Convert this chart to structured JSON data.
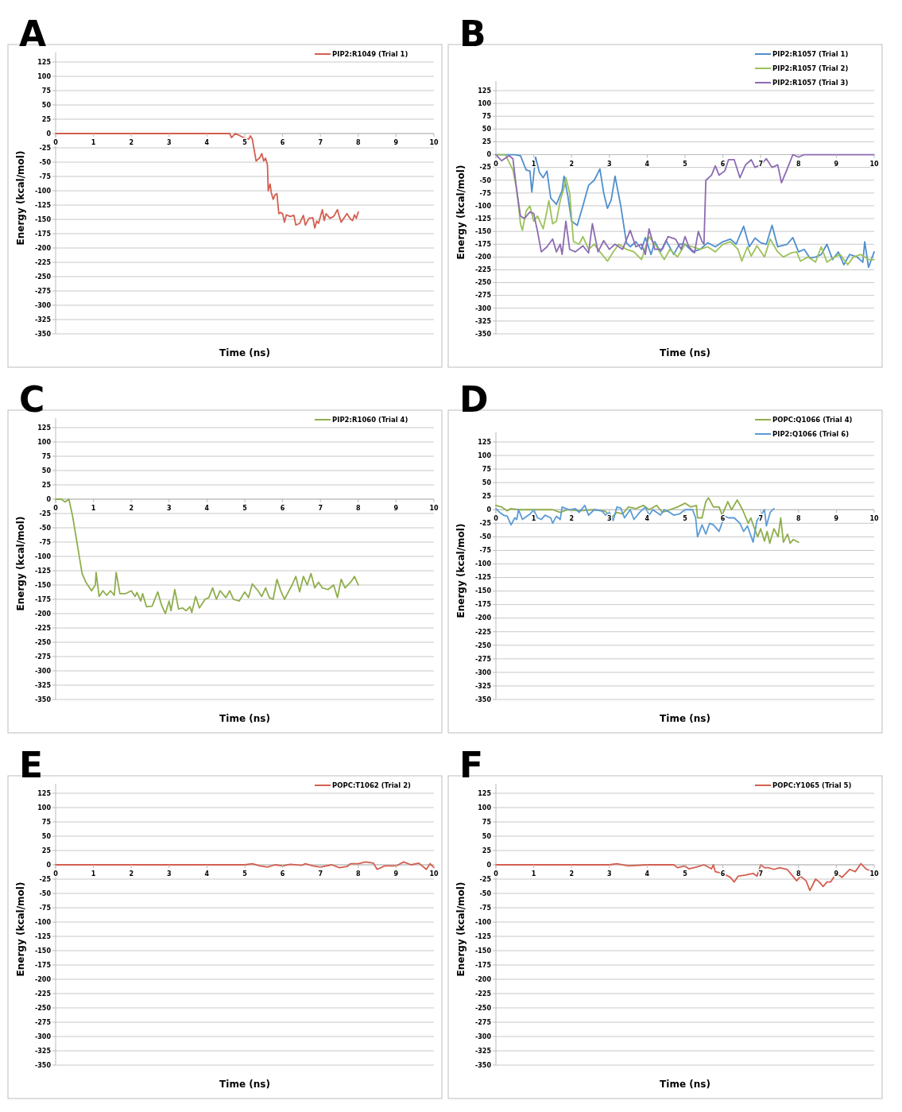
{
  "chart_data": [
    {
      "type": "line",
      "title": "A",
      "xlabel": "Time (ns)",
      "ylabel": "Energy (kcal/mol)",
      "xlim": [
        0,
        10
      ],
      "ylim": [
        -350,
        125
      ],
      "xticks": [
        0,
        1,
        2,
        3,
        4,
        5,
        6,
        7,
        8,
        9,
        10
      ],
      "yticks": [
        -350,
        -325,
        -300,
        -275,
        -250,
        -225,
        -200,
        -175,
        -150,
        -125,
        -100,
        -75,
        -50,
        -25,
        0,
        25,
        50,
        75,
        100,
        125
      ],
      "grid": "y",
      "legend": "top right",
      "series": [
        {
          "name": "PIP2:R1049 (Trial 1)",
          "color": "#d35f50",
          "x": [
            0,
            1,
            2,
            3,
            4,
            4.6,
            4.65,
            4.75,
            5.0,
            5.1,
            5.15,
            5.2,
            5.3,
            5.4,
            5.45,
            5.5,
            5.55,
            5.6,
            5.62,
            5.67,
            5.7,
            5.75,
            5.8,
            5.85,
            5.9,
            5.95,
            6.0,
            6.05,
            6.1,
            6.2,
            6.3,
            6.35,
            6.45,
            6.55,
            6.6,
            6.7,
            6.8,
            6.85,
            6.9,
            6.95,
            7.05,
            7.1,
            7.15,
            7.25,
            7.35,
            7.45,
            7.5,
            7.55,
            7.6,
            7.7,
            7.8,
            7.85,
            7.9,
            7.95,
            8.0
          ],
          "values": [
            0,
            0,
            0,
            0,
            0,
            0,
            -7,
            0,
            -8,
            -10,
            -4,
            -10,
            -48,
            -42,
            -35,
            -48,
            -43,
            -55,
            -100,
            -88,
            -103,
            -115,
            -107,
            -105,
            -140,
            -138,
            -140,
            -155,
            -142,
            -145,
            -143,
            -160,
            -157,
            -143,
            -160,
            -148,
            -147,
            -165,
            -153,
            -157,
            -133,
            -152,
            -140,
            -148,
            -145,
            -133,
            -145,
            -155,
            -150,
            -140,
            -150,
            -152,
            -142,
            -148,
            -137
          ]
        }
      ]
    },
    {
      "type": "line",
      "title": "B",
      "xlabel": "Time (ns)",
      "ylabel": "Energy (kcal/mol)",
      "xlim": [
        0,
        10
      ],
      "ylim": [
        -350,
        125
      ],
      "xticks": [
        0,
        1,
        2,
        3,
        4,
        5,
        6,
        7,
        8,
        9,
        10
      ],
      "yticks": [
        -350,
        -325,
        -300,
        -275,
        -250,
        -225,
        -200,
        -175,
        -150,
        -125,
        -100,
        -75,
        -50,
        -25,
        0,
        25,
        50,
        75,
        100,
        125
      ],
      "grid": "y",
      "legend": "top right",
      "series": [
        {
          "name": "PIP2:R1057 (Trial 1)",
          "color": "#4f8fcf",
          "x": [
            0,
            0.3,
            0.5,
            0.65,
            0.8,
            0.9,
            0.95,
            1.05,
            1.15,
            1.25,
            1.35,
            1.45,
            1.6,
            1.75,
            1.8,
            1.9,
            2.0,
            2.15,
            2.3,
            2.45,
            2.6,
            2.75,
            2.85,
            2.95,
            3.05,
            3.15,
            3.3,
            3.45,
            3.55,
            3.7,
            3.85,
            3.95,
            4.1,
            4.2,
            4.35,
            4.5,
            4.7,
            4.85,
            5.0,
            5.2,
            5.4,
            5.6,
            5.8,
            6.0,
            6.2,
            6.35,
            6.55,
            6.7,
            6.85,
            7.0,
            7.15,
            7.3,
            7.45,
            7.7,
            7.85,
            8.0,
            8.15,
            8.3,
            8.45,
            8.6,
            8.75,
            8.9,
            9.05,
            9.2,
            9.35,
            9.55,
            9.7,
            9.75,
            9.85,
            10
          ],
          "values": [
            0,
            0,
            0,
            -2,
            -30,
            -32,
            -73,
            -5,
            -35,
            -45,
            -32,
            -85,
            -97,
            -70,
            -42,
            -80,
            -130,
            -138,
            -100,
            -60,
            -50,
            -28,
            -75,
            -105,
            -88,
            -42,
            -100,
            -172,
            -180,
            -170,
            -185,
            -162,
            -195,
            -170,
            -190,
            -168,
            -195,
            -175,
            -175,
            -190,
            -185,
            -172,
            -180,
            -170,
            -165,
            -175,
            -140,
            -180,
            -163,
            -172,
            -175,
            -138,
            -180,
            -175,
            -162,
            -190,
            -185,
            -202,
            -200,
            -195,
            -175,
            -205,
            -190,
            -215,
            -195,
            -200,
            -210,
            -170,
            -220,
            -190
          ]
        },
        {
          "name": "PIP2:R1057 (Trial 2)",
          "color": "#9bc25a",
          "x": [
            0,
            0.25,
            0.45,
            0.55,
            0.65,
            0.7,
            0.8,
            0.9,
            1.0,
            1.1,
            1.25,
            1.35,
            1.4,
            1.5,
            1.6,
            1.7,
            1.8,
            1.85,
            1.95,
            2.05,
            2.2,
            2.3,
            2.45,
            2.6,
            2.75,
            2.95,
            3.1,
            3.25,
            3.45,
            3.65,
            3.85,
            4.05,
            4.25,
            4.45,
            4.6,
            4.8,
            5.0,
            5.2,
            5.4,
            5.6,
            5.8,
            6.0,
            6.2,
            6.4,
            6.5,
            6.65,
            6.75,
            6.9,
            7.1,
            7.25,
            7.45,
            7.6,
            7.8,
            7.95,
            8.05,
            8.25,
            8.45,
            8.6,
            8.75,
            8.95,
            9.1,
            9.3,
            9.45,
            9.65,
            9.85,
            10
          ],
          "values": [
            0,
            0,
            -30,
            -68,
            -135,
            -148,
            -110,
            -100,
            -130,
            -120,
            -145,
            -110,
            -90,
            -135,
            -130,
            -90,
            -65,
            -45,
            -75,
            -170,
            -175,
            -160,
            -185,
            -175,
            -190,
            -208,
            -190,
            -175,
            -185,
            -190,
            -205,
            -160,
            -180,
            -205,
            -185,
            -200,
            -175,
            -180,
            -185,
            -180,
            -190,
            -175,
            -170,
            -185,
            -208,
            -180,
            -198,
            -178,
            -200,
            -165,
            -190,
            -200,
            -192,
            -190,
            -208,
            -200,
            -210,
            -180,
            -210,
            -200,
            -195,
            -215,
            -200,
            -195,
            -205,
            -205
          ]
        },
        {
          "name": "PIP2:R1057 (Trial 3)",
          "color": "#8c6bb1",
          "x": [
            0,
            0.15,
            0.35,
            0.45,
            0.55,
            0.65,
            0.75,
            0.9,
            1.0,
            1.1,
            1.2,
            1.35,
            1.5,
            1.6,
            1.7,
            1.75,
            1.85,
            1.95,
            2.1,
            2.3,
            2.45,
            2.55,
            2.7,
            2.85,
            3.0,
            3.15,
            3.35,
            3.55,
            3.7,
            3.85,
            3.95,
            4.05,
            4.2,
            4.4,
            4.55,
            4.75,
            4.9,
            5.0,
            5.1,
            5.25,
            5.35,
            5.45,
            5.5,
            5.55,
            5.7,
            5.8,
            5.9,
            6.05,
            6.15,
            6.3,
            6.45,
            6.6,
            6.75,
            6.85,
            7.0,
            7.15,
            7.3,
            7.45,
            7.55,
            7.7,
            7.85,
            8.0,
            8.15,
            8.5,
            10
          ],
          "values": [
            0,
            -12,
            -2,
            -8,
            -70,
            -120,
            -125,
            -112,
            -115,
            -150,
            -190,
            -180,
            -165,
            -190,
            -175,
            -195,
            -130,
            -185,
            -190,
            -178,
            -192,
            -135,
            -190,
            -168,
            -185,
            -175,
            -185,
            -148,
            -180,
            -175,
            -195,
            -145,
            -185,
            -185,
            -160,
            -165,
            -185,
            -160,
            -180,
            -192,
            -150,
            -170,
            -175,
            -50,
            -40,
            -22,
            -40,
            -32,
            -10,
            -10,
            -45,
            -20,
            -10,
            -25,
            -20,
            -8,
            -25,
            -20,
            -55,
            -28,
            0,
            -5,
            0,
            0,
            0
          ]
        }
      ]
    },
    {
      "type": "line",
      "title": "C",
      "xlabel": "Time (ns)",
      "ylabel": "Energy (kcal/mol)",
      "xlim": [
        0,
        10
      ],
      "ylim": [
        -350,
        125
      ],
      "xticks": [
        0,
        1,
        2,
        3,
        4,
        5,
        6,
        7,
        8,
        9,
        10
      ],
      "yticks": [
        -350,
        -325,
        -300,
        -275,
        -250,
        -225,
        -200,
        -175,
        -150,
        -125,
        -100,
        -75,
        -50,
        -25,
        0,
        25,
        50,
        75,
        100,
        125
      ],
      "grid": "y",
      "legend": "top right",
      "series": [
        {
          "name": "PIP2:R1060 (Trial 4)",
          "color": "#8fae4c",
          "x": [
            0,
            0.15,
            0.25,
            0.35,
            0.45,
            0.6,
            0.7,
            0.8,
            0.95,
            1.05,
            1.07,
            1.15,
            1.25,
            1.35,
            1.45,
            1.55,
            1.6,
            1.7,
            1.85,
            2.0,
            2.1,
            2.15,
            2.25,
            2.3,
            2.4,
            2.55,
            2.7,
            2.8,
            2.9,
            3.0,
            3.05,
            3.15,
            3.25,
            3.35,
            3.45,
            3.55,
            3.6,
            3.7,
            3.8,
            3.95,
            4.05,
            4.15,
            4.25,
            4.35,
            4.5,
            4.6,
            4.7,
            4.85,
            5.0,
            5.1,
            5.2,
            5.35,
            5.45,
            5.55,
            5.65,
            5.75,
            5.85,
            5.95,
            6.05,
            6.25,
            6.35,
            6.45,
            6.55,
            6.65,
            6.75,
            6.85,
            6.95,
            7.05,
            7.2,
            7.35,
            7.45,
            7.55,
            7.65,
            7.8,
            7.9,
            8.0
          ],
          "values": [
            0,
            0,
            -5,
            0,
            -30,
            -90,
            -130,
            -145,
            -160,
            -150,
            -128,
            -170,
            -160,
            -168,
            -160,
            -168,
            -128,
            -165,
            -165,
            -160,
            -170,
            -163,
            -178,
            -165,
            -188,
            -187,
            -162,
            -185,
            -200,
            -178,
            -195,
            -158,
            -192,
            -190,
            -195,
            -188,
            -198,
            -170,
            -190,
            -175,
            -172,
            -155,
            -175,
            -160,
            -172,
            -160,
            -175,
            -178,
            -162,
            -172,
            -148,
            -160,
            -170,
            -155,
            -172,
            -175,
            -140,
            -160,
            -175,
            -150,
            -135,
            -162,
            -135,
            -150,
            -130,
            -155,
            -145,
            -155,
            -158,
            -150,
            -172,
            -140,
            -155,
            -145,
            -135,
            -150
          ]
        }
      ]
    },
    {
      "type": "line",
      "title": "D",
      "xlabel": "Time (ns)",
      "ylabel": "Energy (kcal/mol)",
      "xlim": [
        0,
        10
      ],
      "ylim": [
        -350,
        125
      ],
      "xticks": [
        0,
        1,
        2,
        3,
        4,
        5,
        6,
        7,
        8,
        9,
        10
      ],
      "yticks": [
        -350,
        -325,
        -300,
        -275,
        -250,
        -225,
        -200,
        -175,
        -150,
        -125,
        -100,
        -75,
        -50,
        -25,
        0,
        25,
        50,
        75,
        100,
        125
      ],
      "grid": "y",
      "legend": "top right",
      "series": [
        {
          "name": "POPC:Q1066 (Trial 4)",
          "color": "#8fae4c",
          "x": [
            0,
            0.15,
            0.3,
            0.4,
            0.6,
            1.0,
            1.5,
            1.7,
            1.9,
            2.2,
            2.6,
            2.9,
            3.05,
            3.2,
            3.35,
            3.5,
            3.7,
            3.9,
            4.05,
            4.25,
            4.4,
            4.6,
            4.8,
            5.0,
            5.15,
            5.3,
            5.33,
            5.45,
            5.55,
            5.62,
            5.75,
            5.9,
            5.98,
            6.13,
            6.23,
            6.38,
            6.52,
            6.67,
            6.74,
            6.81,
            6.92,
            7.0,
            7.1,
            7.17,
            7.24,
            7.35,
            7.46,
            7.53,
            7.6,
            7.71,
            7.78,
            7.86,
            8.0
          ],
          "values": [
            8,
            5,
            -2,
            2,
            0,
            0,
            0,
            -5,
            0,
            -2,
            0,
            -3,
            -15,
            -5,
            -8,
            5,
            2,
            8,
            0,
            8,
            -5,
            0,
            5,
            12,
            5,
            8,
            -15,
            -15,
            15,
            22,
            5,
            5,
            -10,
            15,
            0,
            18,
            0,
            -25,
            -15,
            -30,
            -50,
            -35,
            -58,
            -40,
            -62,
            -35,
            -50,
            -15,
            -60,
            -45,
            -62,
            -55,
            -60
          ]
        },
        {
          "name": "PIP2:Q1066 (Trial 6)",
          "color": "#5b9bd5",
          "x": [
            0,
            0.1,
            0.2,
            0.3,
            0.4,
            0.5,
            0.55,
            0.6,
            0.7,
            0.9,
            1.0,
            1.1,
            1.2,
            1.3,
            1.45,
            1.5,
            1.6,
            1.7,
            1.75,
            1.85,
            1.95,
            2.1,
            2.2,
            2.35,
            2.45,
            2.6,
            2.8,
            2.9,
            3.0,
            3.1,
            3.2,
            3.3,
            3.4,
            3.55,
            3.65,
            3.8,
            3.95,
            4.05,
            4.15,
            4.35,
            4.45,
            4.6,
            4.7,
            4.85,
            5.0,
            5.2,
            5.28,
            5.33,
            5.45,
            5.55,
            5.65,
            5.75,
            5.9,
            6.0,
            6.05,
            6.15,
            6.3,
            6.45,
            6.55,
            6.65,
            6.8,
            6.9,
            7.05,
            7.1,
            7.15,
            7.25,
            7.35
          ],
          "values": [
            2,
            -5,
            -10,
            -12,
            -28,
            -15,
            -18,
            0,
            -18,
            -8,
            0,
            -15,
            -18,
            -10,
            -15,
            -25,
            -12,
            -18,
            5,
            2,
            0,
            2,
            -5,
            8,
            -10,
            0,
            -2,
            -10,
            -5,
            -20,
            5,
            3,
            -15,
            0,
            -18,
            -5,
            5,
            -10,
            0,
            -10,
            0,
            -5,
            -10,
            -8,
            0,
            0,
            -15,
            -50,
            -28,
            -45,
            -25,
            -28,
            -40,
            -20,
            -12,
            -15,
            -15,
            -25,
            -40,
            -30,
            -60,
            -20,
            -5,
            0,
            -30,
            -5,
            2
          ]
        }
      ]
    },
    {
      "type": "line",
      "title": "E",
      "xlabel": "Time (ns)",
      "ylabel": "Energy (kcal/mol)",
      "xlim": [
        0,
        10
      ],
      "ylim": [
        -350,
        125
      ],
      "xticks": [
        0,
        1,
        2,
        3,
        4,
        5,
        6,
        7,
        8,
        9,
        10
      ],
      "yticks": [
        -350,
        -325,
        -300,
        -275,
        -250,
        -225,
        -200,
        -175,
        -150,
        -125,
        -100,
        -75,
        -50,
        -25,
        0,
        25,
        50,
        75,
        100,
        125
      ],
      "grid": "y",
      "legend": "top right",
      "series": [
        {
          "name": "POPC:T1062 (Trial 2)",
          "color": "#d35f50",
          "x": [
            0,
            1,
            2,
            3,
            4,
            5,
            5.2,
            5.4,
            5.6,
            5.8,
            6.0,
            6.2,
            6.5,
            6.6,
            6.8,
            7.0,
            7.3,
            7.5,
            7.7,
            7.8,
            8.0,
            8.2,
            8.4,
            8.5,
            8.7,
            9.0,
            9.2,
            9.4,
            9.6,
            9.8,
            9.9,
            10
          ],
          "values": [
            0,
            0,
            0,
            0,
            0,
            0,
            2,
            -2,
            -4,
            0,
            -2,
            1,
            -1,
            2,
            -2,
            -4,
            0,
            -5,
            -3,
            2,
            2,
            5,
            3,
            -8,
            -2,
            -2,
            5,
            0,
            3,
            -8,
            2,
            -5
          ]
        }
      ]
    },
    {
      "type": "line",
      "title": "F",
      "xlabel": "Time (ns)",
      "ylabel": "Energy (kcal/mol)",
      "xlim": [
        0,
        10
      ],
      "ylim": [
        -350,
        125
      ],
      "xticks": [
        0,
        1,
        2,
        3,
        4,
        5,
        6,
        7,
        8,
        9,
        10
      ],
      "yticks": [
        -350,
        -325,
        -300,
        -275,
        -250,
        -225,
        -200,
        -175,
        -150,
        -125,
        -100,
        -75,
        -50,
        -25,
        0,
        25,
        50,
        75,
        100,
        125
      ],
      "grid": "y",
      "legend": "top right",
      "series": [
        {
          "name": "POPC:Y1065 (Trial 5)",
          "color": "#d35f50",
          "x": [
            0,
            1,
            2,
            3,
            3.2,
            3.5,
            4,
            4.7,
            4.8,
            5,
            5.1,
            5.3,
            5.5,
            5.7,
            5.75,
            5.8,
            6.0,
            6.2,
            6.3,
            6.4,
            6.6,
            6.8,
            6.9,
            7.0,
            7.1,
            7.2,
            7.35,
            7.5,
            7.7,
            7.85,
            7.95,
            8.05,
            8.2,
            8.3,
            8.45,
            8.55,
            8.65,
            8.75,
            8.85,
            9.0,
            9.15,
            9.35,
            9.5,
            9.65,
            9.8,
            10
          ],
          "values": [
            0,
            0,
            0,
            0,
            2,
            -2,
            0,
            0,
            -5,
            -2,
            -7,
            -4,
            0,
            -7,
            0,
            -12,
            -15,
            -22,
            -30,
            -20,
            -18,
            -15,
            -20,
            0,
            -5,
            -5,
            -8,
            -5,
            -8,
            -20,
            -28,
            -20,
            -28,
            -45,
            -25,
            -30,
            -38,
            -30,
            -30,
            -15,
            -22,
            -8,
            -12,
            2,
            -8,
            -12
          ]
        }
      ]
    }
  ]
}
